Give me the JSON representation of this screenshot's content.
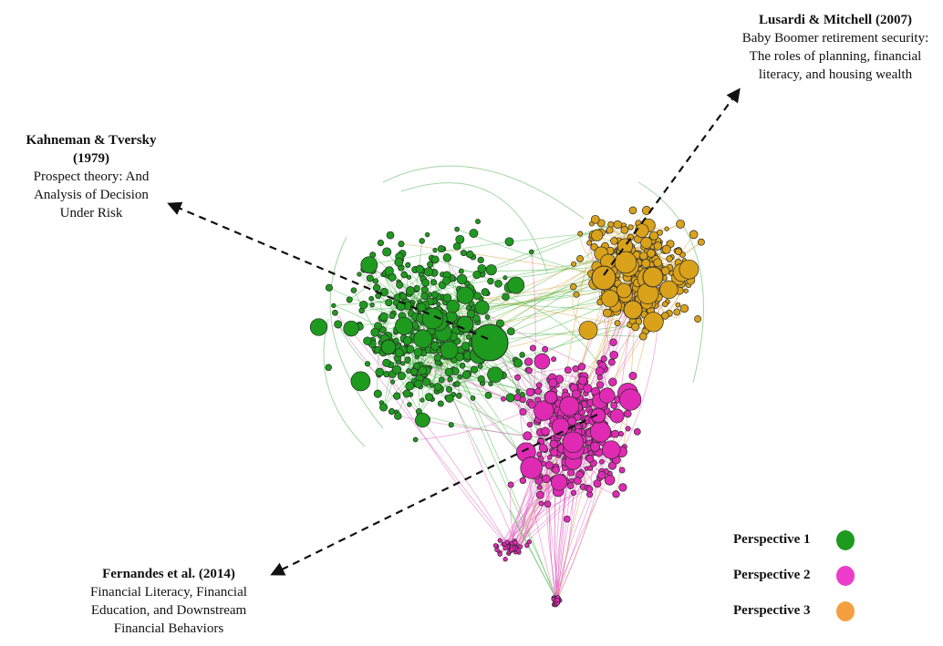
{
  "colors": {
    "perspective_1": "#1e9a1e",
    "perspective_2": "#e02ab4",
    "perspective_3": "#d9a21a",
    "legend_3": "#f5a040",
    "node_outline": "#2a2a2a",
    "arrow": "#111111"
  },
  "annotations": [
    {
      "id": "lusardi",
      "authors": "Lusardi & Mitchell (2007)",
      "title_lines": [
        "Baby Boomer retirement security:",
        "The roles of planning, financial",
        "literacy, and housing wealth"
      ]
    },
    {
      "id": "kahneman",
      "authors_lines": [
        "Kahneman & Tversky",
        "(1979)"
      ],
      "title_lines": [
        "Prospect theory: And",
        "Analysis of Decision",
        "Under Risk"
      ]
    },
    {
      "id": "fernandes",
      "authors": "Fernandes et al. (2014)",
      "title_lines": [
        "Financial Literacy, Financial",
        "Education, and Downstream",
        "Financial Behaviors"
      ]
    }
  ],
  "legend": [
    {
      "label": "Perspective 1",
      "color": "#1e9a1e"
    },
    {
      "label": "Perspective 2",
      "color": "#ec3ccb"
    },
    {
      "label": "Perspective 3",
      "color": "#f5a040"
    }
  ]
}
